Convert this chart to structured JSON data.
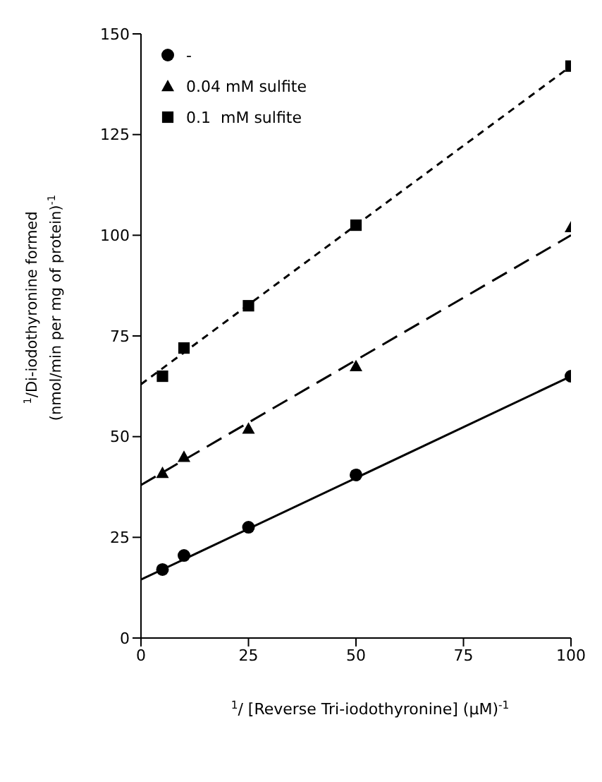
{
  "chart_data": {
    "type": "scatter",
    "xlabel": "$^{1}$/ [Reverse Tri-iodothyronine]  (μM)$^{-1}$",
    "ylabel": "$^{1}$/Di-iodothyronine formed\n(nmol/min per mg of protein)$^{-1}$",
    "xlim": [
      0,
      100
    ],
    "xticks": [
      0,
      25,
      50,
      75,
      100
    ],
    "ylim": [
      0,
      150
    ],
    "yticks": [
      0,
      25,
      50,
      75,
      100,
      125,
      150
    ],
    "grid": false,
    "legend": "top left",
    "series": [
      {
        "name": "-",
        "marker": "circle",
        "color": "#000000",
        "x": [
          5,
          10,
          25,
          50,
          100
        ],
        "values": [
          17,
          20.5,
          27.5,
          40.5,
          65
        ]
      },
      {
        "name": "0.04 mM sulfite",
        "marker": "triangle",
        "color": "#000000",
        "x": [
          5,
          10,
          25,
          50,
          100
        ],
        "values": [
          41,
          45,
          52,
          67.5,
          102
        ]
      },
      {
        "name": "0.1  mM sulfite",
        "marker": "square",
        "color": "#000000",
        "x": [
          5,
          10,
          25,
          50,
          100
        ],
        "values": [
          65,
          72,
          82.5,
          102.5,
          142
        ]
      },
      {
        "type": "line",
        "marker": "none",
        "line_style": "solid",
        "color": "#000000",
        "x": [
          0,
          100
        ],
        "values": [
          14.5,
          65
        ]
      },
      {
        "type": "line",
        "marker": "none",
        "line_style": "dashed",
        "color": "#000000",
        "x": [
          0,
          100
        ],
        "values": [
          38,
          100
        ]
      },
      {
        "type": "line",
        "marker": "none",
        "line_style": "dotted",
        "color": "#000000",
        "x": [
          0,
          100
        ],
        "values": [
          63,
          142
        ]
      }
    ]
  }
}
